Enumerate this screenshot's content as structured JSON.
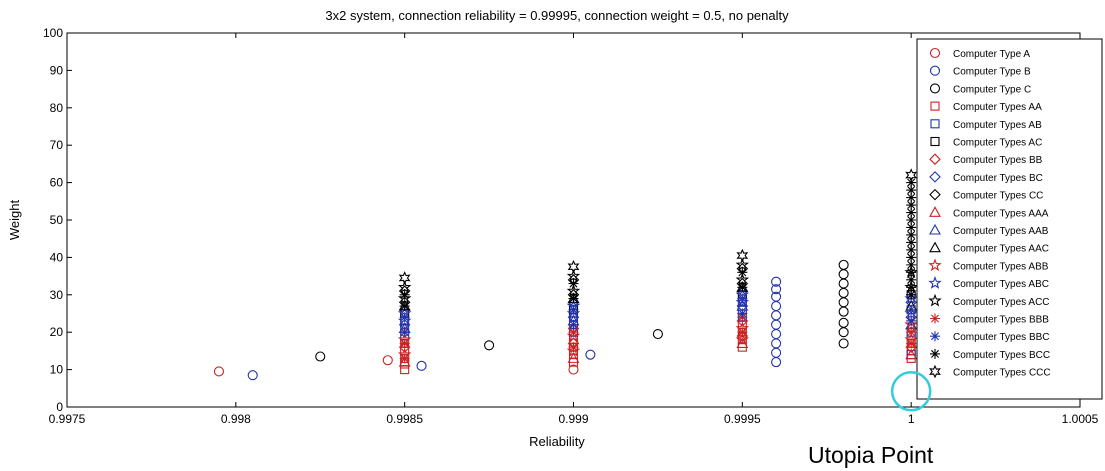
{
  "chart_data": {
    "type": "scatter",
    "title": "3x2 system, connection reliability = 0.99995, connection weight = 0.5, no penalty",
    "xlabel": "Reliability",
    "ylabel": "Weight",
    "xlim": [
      0.9975,
      1.0005
    ],
    "ylim": [
      0,
      100
    ],
    "xticks": [
      0.9975,
      0.998,
      0.9985,
      0.999,
      0.9995,
      1,
      1.0005
    ],
    "xtick_labels": [
      "0.9975",
      "0.998",
      "0.9985",
      "0.999",
      "0.9995",
      "1",
      "1.0005"
    ],
    "yticks": [
      0,
      10,
      20,
      30,
      40,
      50,
      60,
      70,
      80,
      90,
      100
    ],
    "legend_position": "top-right",
    "annotation": {
      "text": "Utopia Point",
      "x": 1,
      "y": 1,
      "color": "#33ccdd"
    },
    "series": [
      {
        "name": "Computer Type A",
        "marker": "circle",
        "color": "#cc2222",
        "x": [
          0.99795,
          0.99845,
          0.999
        ],
        "y": [
          9.5,
          12.5,
          10
        ]
      },
      {
        "name": "Computer Type B",
        "marker": "circle",
        "color": "#2233aa",
        "x": [
          0.99805,
          0.99855,
          0.99905,
          0.9996,
          0.9996,
          0.9996,
          0.9996,
          0.9996,
          0.9996,
          0.9996,
          0.9996,
          0.9996,
          0.9996
        ],
        "y": [
          8.5,
          11,
          14,
          12,
          14.5,
          17,
          19.5,
          22,
          24.5,
          27,
          29.5,
          31.5,
          33.5
        ]
      },
      {
        "name": "Computer Type C",
        "marker": "circle",
        "color": "#000000",
        "x": [
          0.99825,
          0.99875,
          0.99925,
          0.9998,
          0.9998,
          0.9998,
          0.9998,
          0.9998,
          0.9998,
          0.9998,
          0.9998,
          0.9998
        ],
        "y": [
          13.5,
          16.5,
          19.5,
          17,
          20,
          22.5,
          25.5,
          28,
          30.5,
          33,
          35.5,
          38
        ]
      },
      {
        "name": "Computer Types AA",
        "marker": "square",
        "color": "#cc2222",
        "x": [
          0.9985,
          0.9985,
          0.9985,
          0.9985,
          0.9985,
          0.999,
          0.999,
          0.999,
          0.999,
          0.9995,
          0.9995,
          0.9995,
          0.9995,
          1,
          1,
          1,
          1
        ],
        "y": [
          10,
          11.5,
          13,
          15,
          17,
          12,
          14,
          16,
          18,
          16,
          18,
          20,
          22,
          13,
          15,
          17,
          19
        ]
      },
      {
        "name": "Computer Types AB",
        "marker": "square",
        "color": "#2233aa",
        "x": [
          0.9985,
          0.9985,
          0.9985,
          0.999,
          0.999,
          0.999,
          0.9995,
          0.9995,
          0.9995,
          1,
          1,
          1
        ],
        "y": [
          19,
          21,
          23,
          20,
          22,
          24,
          24,
          26,
          28,
          14,
          20,
          26
        ]
      },
      {
        "name": "Computer Types AC",
        "marker": "square",
        "color": "#000000",
        "x": [
          0.9985,
          0.999,
          0.9995,
          1
        ],
        "y": [
          25,
          26,
          30,
          30
        ]
      },
      {
        "name": "Computer Types BB",
        "marker": "diamond",
        "color": "#cc2222",
        "x": [
          0.9985,
          0.9985,
          0.999,
          0.999,
          0.9995,
          0.9995,
          1,
          1
        ],
        "y": [
          16,
          20,
          17,
          21,
          19,
          23,
          16,
          21
        ]
      },
      {
        "name": "Computer Types BC",
        "marker": "diamond",
        "color": "#2233aa",
        "x": [
          0.9985,
          0.9985,
          0.999,
          0.999,
          0.9995,
          0.9995,
          1,
          1
        ],
        "y": [
          22,
          26,
          24,
          28,
          27,
          31,
          24,
          28
        ]
      },
      {
        "name": "Computer Types CC",
        "marker": "diamond",
        "color": "#000000",
        "x": [
          0.9985,
          0.9985,
          0.999,
          0.999,
          0.9995,
          0.9995
        ],
        "y": [
          28,
          31,
          30,
          34,
          33,
          37
        ]
      },
      {
        "name": "Computer Types AAA",
        "marker": "triangle",
        "color": "#cc2222",
        "x": [
          0.9985,
          0.999,
          0.9995,
          1
        ],
        "y": [
          12,
          13,
          17,
          14
        ]
      },
      {
        "name": "Computer Types AAB",
        "marker": "triangle",
        "color": "#2233aa",
        "x": [
          0.9985,
          0.999,
          0.9995,
          1
        ],
        "y": [
          21,
          23,
          27,
          22
        ]
      },
      {
        "name": "Computer Types AAC",
        "marker": "triangle",
        "color": "#000000",
        "x": [
          0.9985,
          0.999,
          0.9995,
          1
        ],
        "y": [
          27,
          29,
          32,
          27
        ]
      },
      {
        "name": "Computer Types ABB",
        "marker": "star",
        "color": "#cc2222",
        "x": [
          0.9985,
          0.9985,
          0.999,
          0.999,
          0.9995,
          0.9995,
          1,
          1
        ],
        "y": [
          14,
          18,
          15,
          19,
          18,
          21,
          18,
          22
        ]
      },
      {
        "name": "Computer Types ABC",
        "marker": "star",
        "color": "#2233aa",
        "x": [
          0.9985,
          0.9985,
          0.999,
          0.999,
          0.9995,
          0.9995,
          1,
          1
        ],
        "y": [
          23,
          25,
          25,
          27,
          28,
          30,
          25,
          29
        ]
      },
      {
        "name": "Computer Types ACC",
        "marker": "star",
        "color": "#000000",
        "x": [
          0.9985,
          0.9985,
          0.999,
          0.999,
          0.9995,
          0.9995,
          1,
          1
        ],
        "y": [
          29,
          32,
          31,
          35,
          34,
          38,
          32,
          36
        ]
      },
      {
        "name": "Computer Types BBB",
        "marker": "asterisk",
        "color": "#cc2222",
        "x": [
          0.9985,
          0.9985,
          0.999,
          0.999,
          0.9995,
          0.9995,
          1,
          1,
          1
        ],
        "y": [
          13,
          17,
          16,
          20,
          20,
          24,
          17,
          20,
          23
        ]
      },
      {
        "name": "Computer Types BBC",
        "marker": "asterisk",
        "color": "#2233aa",
        "x": [
          0.9985,
          0.9985,
          0.999,
          0.999,
          0.9995,
          0.9995,
          1,
          1,
          1
        ],
        "y": [
          20,
          24,
          22,
          26,
          25,
          29,
          23,
          26,
          30
        ]
      },
      {
        "name": "Computer Types BCC",
        "marker": "asterisk",
        "color": "#000000",
        "x": [
          0.9985,
          0.9985,
          0.999,
          0.999,
          0.9995,
          0.9995,
          1,
          1,
          1,
          1,
          1,
          1,
          1,
          1,
          1,
          1,
          1,
          1,
          1,
          1,
          1,
          1
        ],
        "y": [
          27,
          30,
          29,
          33,
          32,
          36,
          30,
          32,
          34,
          36,
          38,
          40,
          42,
          44,
          46,
          48,
          50,
          52,
          54,
          56,
          58,
          60
        ]
      },
      {
        "name": "Computer Types CCC",
        "marker": "hexagram",
        "color": "#000000",
        "x": [
          0.9985,
          0.999,
          0.9995,
          1
        ],
        "y": [
          34.5,
          37.5,
          40.5,
          62
        ]
      }
    ]
  }
}
